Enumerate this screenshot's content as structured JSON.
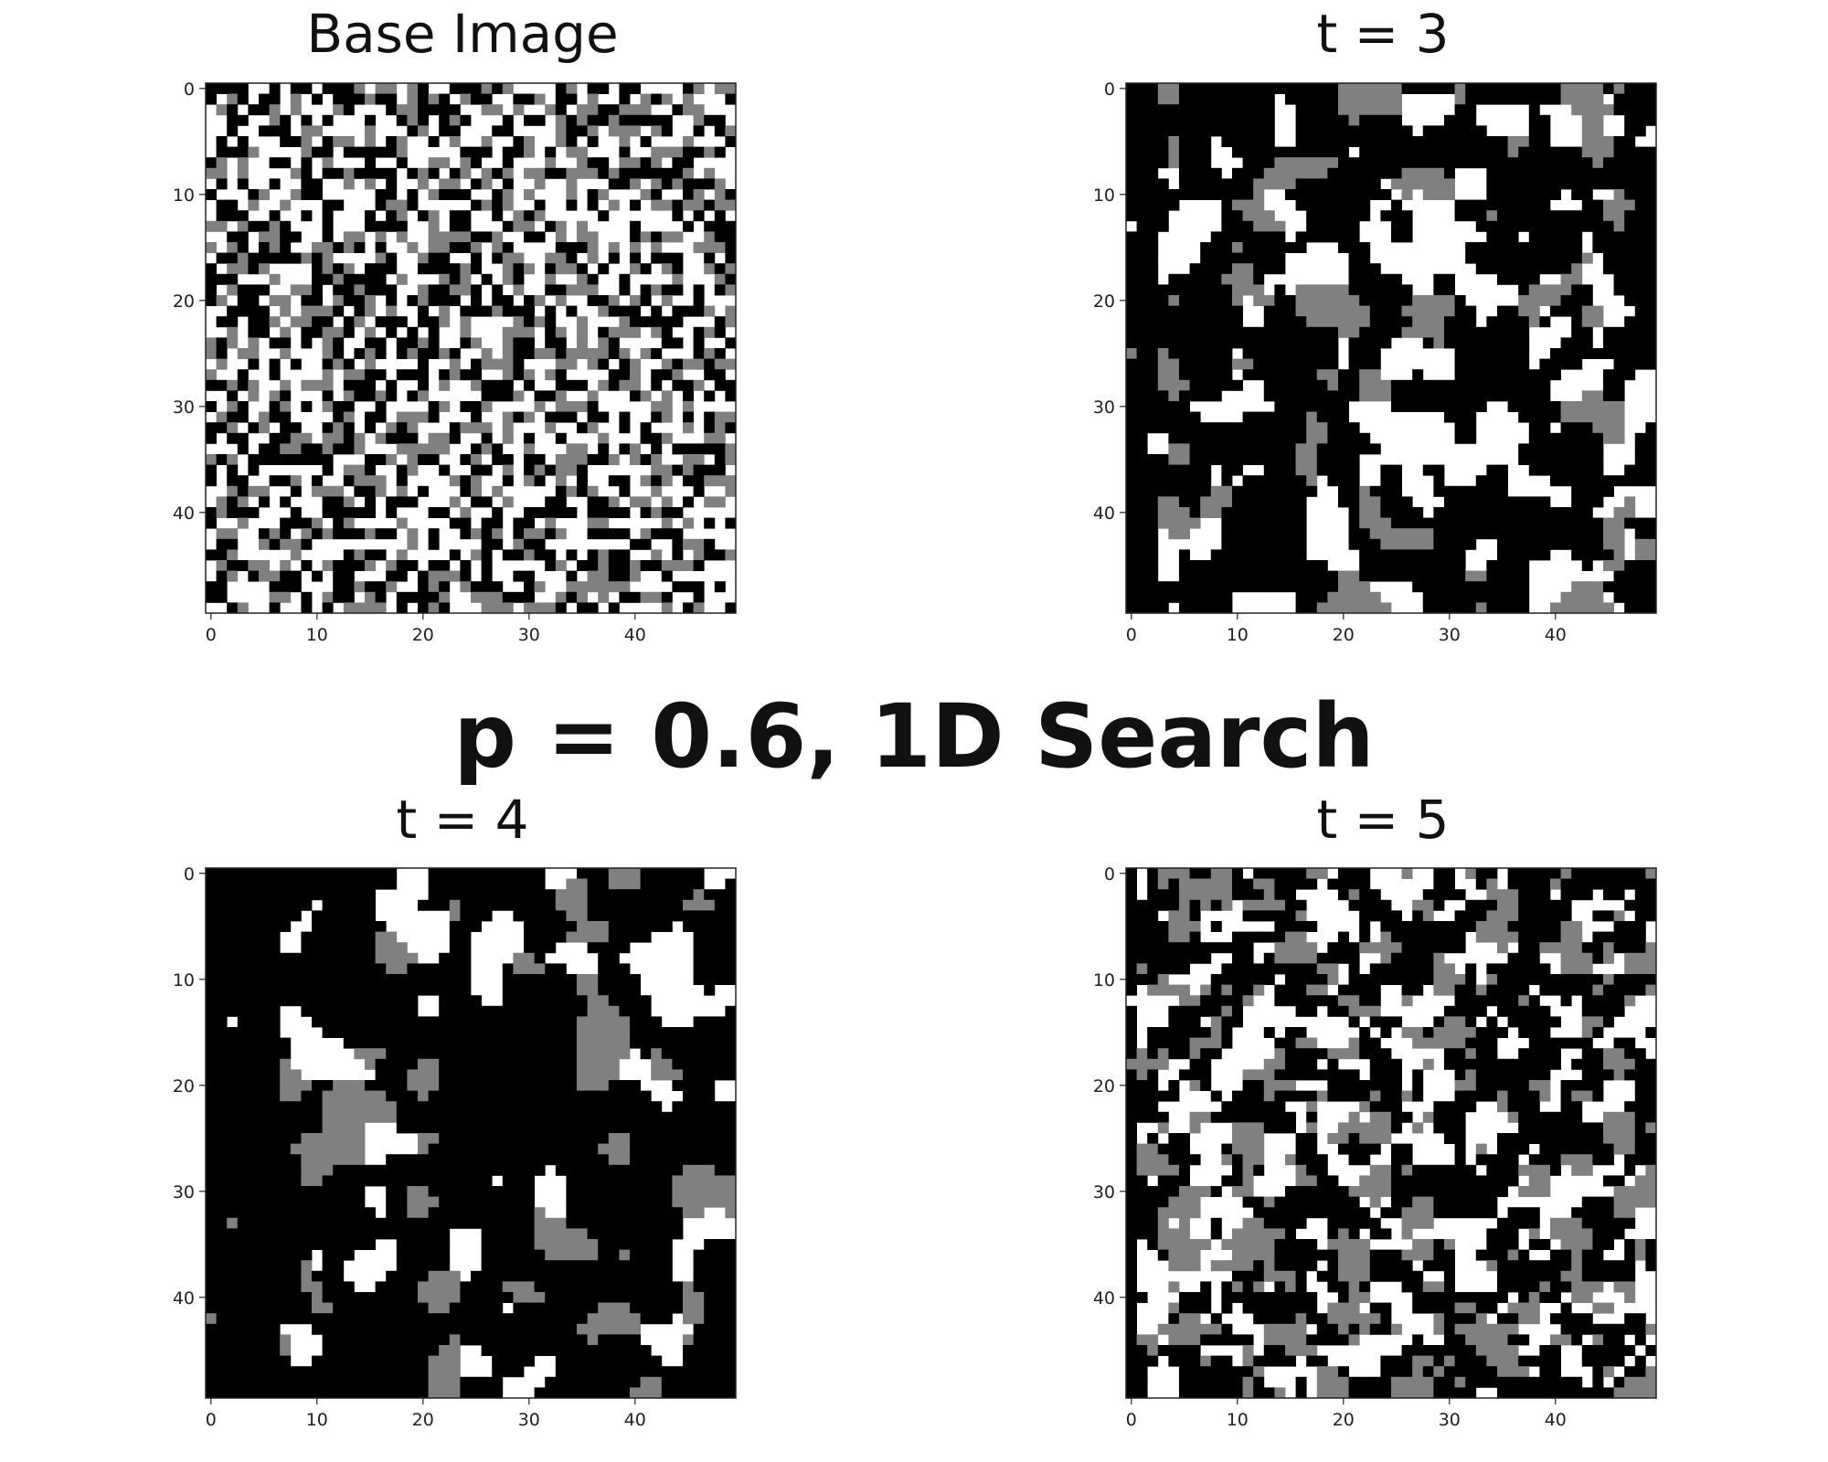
{
  "figure_title": "p = 0.6, 1D Search",
  "colors": {
    "0": "#000000",
    "1": "#808080",
    "2": "#ffffff",
    "axis": "#222222"
  },
  "chart_data": [
    {
      "type": "heatmap",
      "title": "Base Image",
      "rows": 50,
      "cols": 50,
      "values_description": "3-level noise grid",
      "levels": [
        0,
        1,
        2
      ],
      "pattern": {
        "seed": 11,
        "smooth": 0,
        "bias": [
          0.36,
          0.22,
          0.42
        ],
        "left_black_cols": 0
      },
      "xticks": [
        0,
        10,
        20,
        30,
        40
      ],
      "yticks": [
        0,
        10,
        20,
        30,
        40
      ],
      "xlim": [
        -0.5,
        49.5
      ],
      "ylim": [
        49.5,
        -0.5
      ],
      "grid": false
    },
    {
      "type": "heatmap",
      "title": "t = 3",
      "rows": 50,
      "cols": 50,
      "levels": [
        0,
        1,
        2
      ],
      "pattern": {
        "seed": 23,
        "smooth": 2,
        "bias": [
          0.4,
          0.27,
          0.33
        ],
        "left_black_cols": 3
      },
      "xticks": [
        0,
        10,
        20,
        30,
        40
      ],
      "yticks": [
        0,
        10,
        20,
        30,
        40
      ],
      "xlim": [
        -0.5,
        49.5
      ],
      "ylim": [
        49.5,
        -0.5
      ],
      "grid": false
    },
    {
      "type": "heatmap",
      "title": "t = 4",
      "rows": 50,
      "cols": 50,
      "levels": [
        0,
        1,
        2
      ],
      "pattern": {
        "seed": 37,
        "smooth": 3,
        "bias": [
          0.38,
          0.3,
          0.32
        ],
        "left_black_cols": 7
      },
      "xticks": [
        0,
        10,
        20,
        30,
        40
      ],
      "yticks": [
        0,
        10,
        20,
        30,
        40
      ],
      "xlim": [
        -0.5,
        49.5
      ],
      "ylim": [
        49.5,
        -0.5
      ],
      "grid": false
    },
    {
      "type": "heatmap",
      "title": "t = 5",
      "rows": 50,
      "cols": 50,
      "levels": [
        0,
        1,
        2
      ],
      "pattern": {
        "seed": 51,
        "smooth": 1,
        "bias": [
          0.38,
          0.27,
          0.35
        ],
        "left_black_cols": 1
      },
      "xticks": [
        0,
        10,
        20,
        30,
        40
      ],
      "yticks": [
        0,
        10,
        20,
        30,
        40
      ],
      "xlim": [
        -0.5,
        49.5
      ],
      "ylim": [
        49.5,
        -0.5
      ],
      "grid": false
    }
  ]
}
